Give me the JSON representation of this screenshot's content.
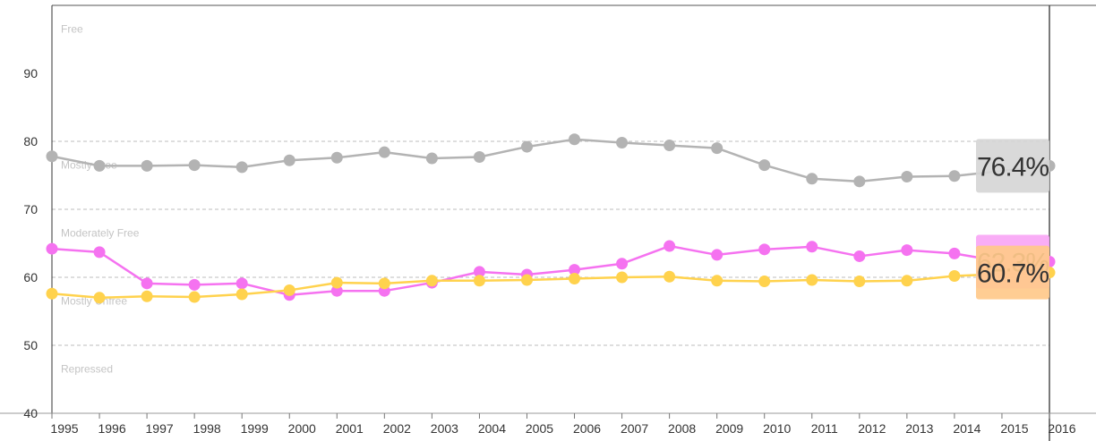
{
  "chart_data": {
    "type": "line",
    "title": "",
    "xlabel": "",
    "ylabel": "",
    "x": [
      "1995",
      "1996",
      "1997",
      "1998",
      "1999",
      "2000",
      "2001",
      "2002",
      "2003",
      "2004",
      "2005",
      "2006",
      "2007",
      "2008",
      "2009",
      "2010",
      "2011",
      "2012",
      "2013",
      "2014",
      "2015",
      "2016"
    ],
    "ylim": [
      40,
      100
    ],
    "yticks": [
      40,
      50,
      60,
      70,
      80,
      90
    ],
    "gridlines": [
      50,
      60,
      70,
      80
    ],
    "grid": "dashed horizontal",
    "bands": [
      {
        "label": "Free",
        "y": 96.5
      },
      {
        "label": "Mostly Free",
        "y": 76.5
      },
      {
        "label": "Moderately Free",
        "y": 66.5
      },
      {
        "label": "Mostly Unfree",
        "y": 56.5
      },
      {
        "label": "Repressed",
        "y": 46.5
      }
    ],
    "series": [
      {
        "color": "#b3b3b3",
        "end_label": "76.4%",
        "label_bg": "#d6d6d6",
        "values": [
          77.8,
          76.4,
          76.4,
          76.5,
          76.2,
          77.2,
          77.6,
          78.4,
          77.5,
          77.7,
          79.2,
          80.3,
          79.8,
          79.4,
          79.0,
          76.5,
          74.5,
          74.1,
          74.8,
          74.9,
          null,
          76.4
        ]
      },
      {
        "color": "#f572f0",
        "end_label": "62.3%",
        "label_bg": "#f9a6f5",
        "values": [
          64.2,
          63.7,
          59.1,
          58.9,
          59.1,
          57.4,
          58.0,
          58.0,
          59.2,
          60.8,
          60.4,
          61.1,
          62.0,
          64.6,
          63.3,
          64.1,
          64.5,
          63.1,
          64.0,
          63.5,
          62.3,
          62.3
        ]
      },
      {
        "color": "#ffd24d",
        "end_label": "60.7%",
        "label_bg": "#ffc98a",
        "values": [
          57.6,
          57.0,
          57.2,
          57.1,
          57.5,
          58.1,
          59.2,
          59.1,
          59.5,
          59.5,
          59.6,
          59.8,
          60.0,
          60.1,
          59.5,
          59.4,
          59.6,
          59.4,
          59.5,
          60.2,
          60.5,
          60.7
        ]
      }
    ]
  }
}
